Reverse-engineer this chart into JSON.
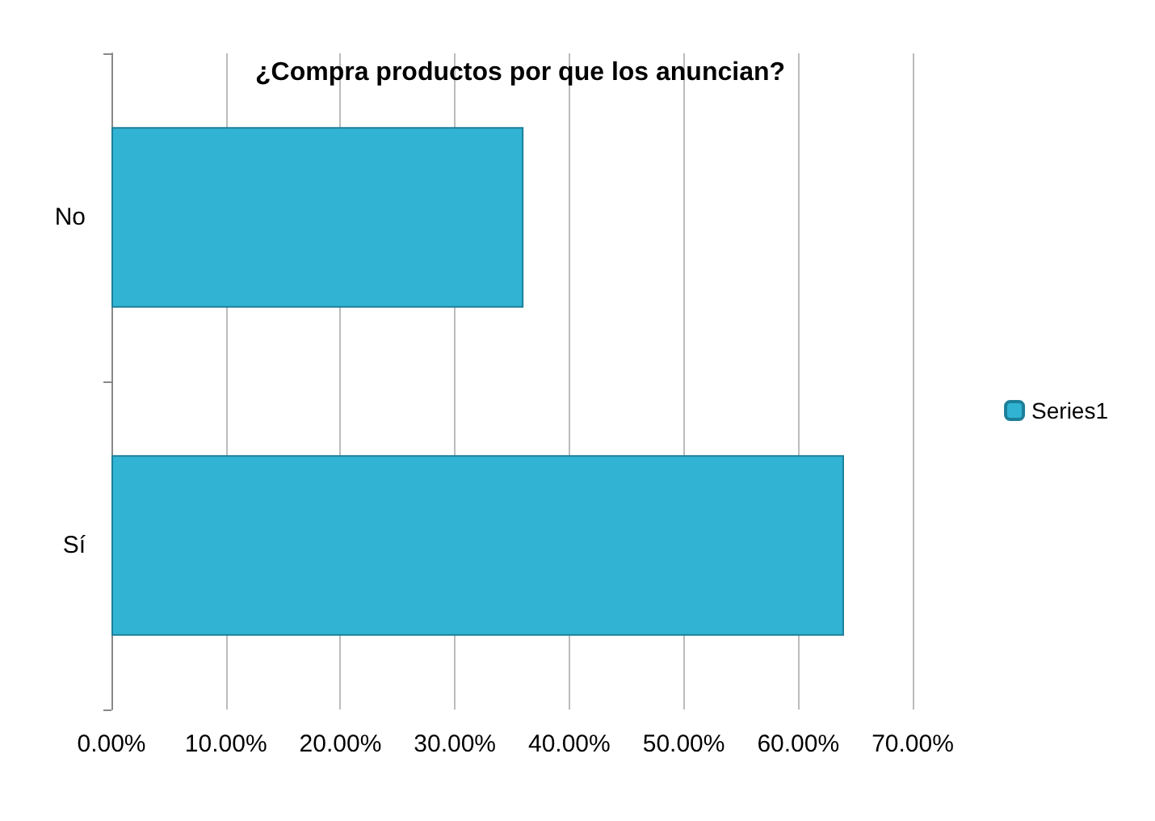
{
  "chart_data": {
    "type": "bar",
    "orientation": "horizontal",
    "title": "¿Compra productos por que los anuncian?",
    "categories": [
      "No",
      "Sí"
    ],
    "series": [
      {
        "name": "Series1",
        "color": "#31b4d4",
        "values": [
          36,
          64
        ]
      }
    ],
    "xlim": [
      0,
      70
    ],
    "xticks": [
      {
        "value": 0,
        "label": "0.00%"
      },
      {
        "value": 10,
        "label": "10.00%"
      },
      {
        "value": 20,
        "label": "20.00%"
      },
      {
        "value": 30,
        "label": "30.00%"
      },
      {
        "value": 40,
        "label": "40.00%"
      },
      {
        "value": 50,
        "label": "50.00%"
      },
      {
        "value": 60,
        "label": "60.00%"
      },
      {
        "value": 70,
        "label": "70.00%"
      }
    ],
    "grid": "x",
    "legend": "right"
  }
}
